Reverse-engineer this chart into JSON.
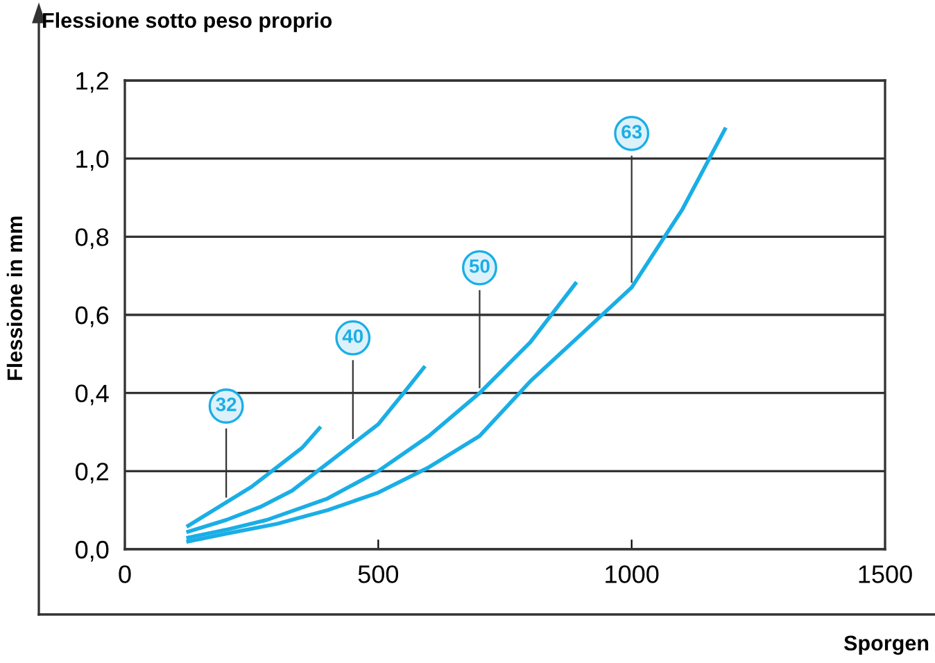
{
  "chart_data": {
    "type": "line",
    "title": "Flessione sotto peso proprio",
    "xlabel": "Sporgen",
    "ylabel": "Flessione in mm",
    "series": [
      {
        "name": "32",
        "color": "#1aaee6",
        "x": [
          125,
          200,
          250,
          300,
          350,
          384
        ],
        "values": [
          0.06,
          0.12,
          0.16,
          0.21,
          0.26,
          0.31
        ]
      },
      {
        "name": "40",
        "color": "#1aaee6",
        "x": [
          125,
          200,
          270,
          330,
          390,
          450,
          500,
          550,
          590
        ],
        "values": [
          0.045,
          0.075,
          0.11,
          0.15,
          0.21,
          0.27,
          0.32,
          0.4,
          0.465
        ]
      },
      {
        "name": "50",
        "color": "#1aaee6",
        "x": [
          125,
          200,
          280,
          400,
          500,
          600,
          700,
          800,
          889
        ],
        "values": [
          0.03,
          0.05,
          0.075,
          0.13,
          0.2,
          0.29,
          0.4,
          0.53,
          0.68
        ]
      },
      {
        "name": "63",
        "color": "#1aaee6",
        "x": [
          125,
          200,
          300,
          400,
          500,
          600,
          700,
          800,
          900,
          1000,
          1100,
          1184
        ],
        "values": [
          0.02,
          0.04,
          0.065,
          0.1,
          0.145,
          0.21,
          0.29,
          0.43,
          0.55,
          0.67,
          0.87,
          1.075
        ]
      }
    ],
    "xlim": [
      0,
      1500
    ],
    "xticks": [
      0,
      500,
      1000,
      1500
    ],
    "ylim": [
      0,
      1.2
    ],
    "yticks": [
      {
        "value": 0,
        "label": "0,0"
      },
      {
        "value": 0.2,
        "label": "0,2"
      },
      {
        "value": 0.4,
        "label": "0,4"
      },
      {
        "value": 0.6,
        "label": "0,6"
      },
      {
        "value": 0.8,
        "label": "0,8"
      },
      {
        "value": 1.0,
        "label": "1,0"
      },
      {
        "value": 1.2,
        "label": "1,2"
      }
    ],
    "grid": "y",
    "legend": false,
    "marker": "none",
    "line_style": "solid"
  }
}
